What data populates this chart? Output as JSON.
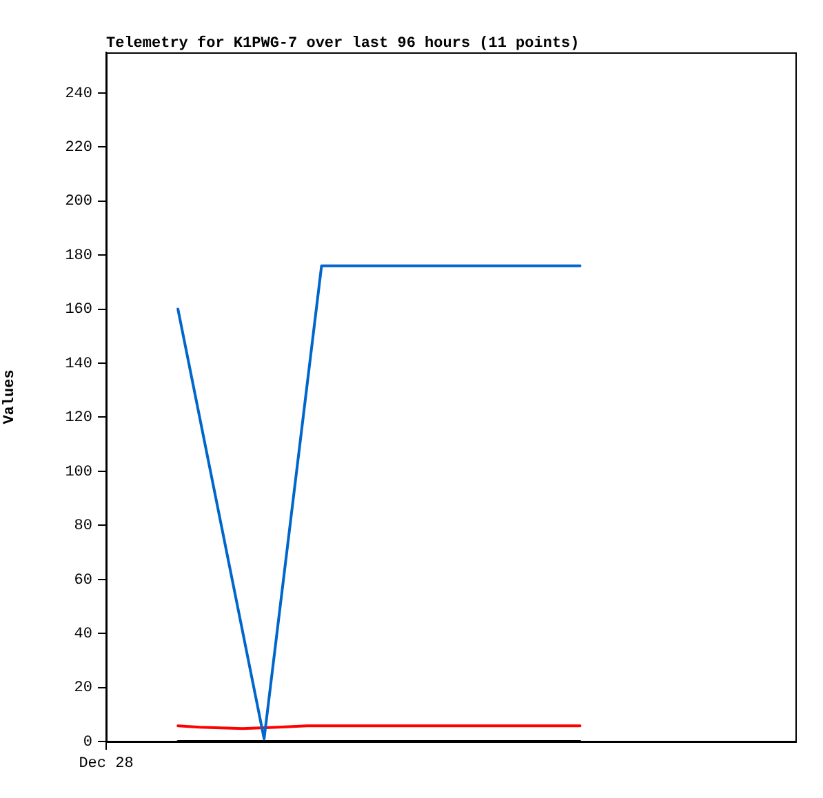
{
  "chart_data": {
    "type": "line",
    "title": "Telemetry for K1PWG-7 over last 96 hours (11 points)",
    "ylabel": "Values",
    "categories": [
      "Dec 28",
      null,
      null,
      null,
      null,
      null,
      null,
      null,
      null,
      null,
      null,
      null,
      null,
      null,
      null,
      null,
      null,
      null,
      null,
      null,
      null,
      null,
      null,
      null,
      null,
      null,
      null,
      null,
      null,
      null,
      null,
      null,
      null,
      null,
      null,
      null,
      null,
      null,
      null,
      null,
      null,
      null,
      null,
      null,
      null,
      null,
      null,
      null,
      null,
      null,
      null,
      null,
      null,
      null,
      null,
      null,
      null,
      null,
      null,
      null,
      null,
      null,
      null,
      null,
      null,
      null,
      null,
      null,
      null,
      null,
      null,
      null,
      null,
      null,
      null,
      null,
      null,
      null,
      null,
      null,
      null,
      null,
      null,
      null,
      null,
      null,
      null,
      null,
      null,
      null,
      null,
      null,
      null,
      null,
      null,
      null,
      null
    ],
    "ylim": [
      0,
      255
    ],
    "yticks": [
      0,
      20,
      40,
      60,
      80,
      100,
      120,
      140,
      160,
      180,
      200,
      220,
      240
    ],
    "grid": false,
    "legend": false,
    "marker": "none",
    "line_style": "solid",
    "series": [
      {
        "color": "#0066cc",
        "values": [
          null,
          null,
          null,
          null,
          null,
          null,
          null,
          null,
          null,
          null,
          160,
          null,
          null,
          null,
          null,
          null,
          null,
          null,
          null,
          null,
          null,
          null,
          1,
          null,
          null,
          null,
          null,
          null,
          null,
          null,
          176,
          null,
          null,
          null,
          null,
          null,
          null,
          null,
          null,
          null,
          null,
          null,
          null,
          null,
          null,
          null,
          null,
          null,
          null,
          null,
          null,
          null,
          null,
          null,
          null,
          null,
          null,
          null,
          null,
          null,
          null,
          null,
          null,
          null,
          null,
          null,
          176,
          null,
          null,
          null,
          null,
          null,
          null,
          null,
          null,
          null,
          null,
          null,
          null,
          null,
          null,
          null,
          null,
          null,
          null,
          null,
          null,
          null,
          null,
          null,
          null,
          null,
          null,
          null,
          null,
          null,
          null
        ]
      },
      {
        "color": "#ff0000",
        "values": [
          null,
          null,
          null,
          null,
          null,
          null,
          null,
          null,
          null,
          null,
          5.8,
          null,
          null,
          5.3,
          null,
          null,
          null,
          null,
          null,
          4.8,
          null,
          null,
          null,
          null,
          5.3,
          null,
          null,
          null,
          5.8,
          null,
          null,
          null,
          null,
          null,
          null,
          null,
          null,
          null,
          null,
          null,
          null,
          null,
          null,
          null,
          null,
          null,
          null,
          null,
          null,
          null,
          null,
          null,
          null,
          null,
          null,
          null,
          null,
          null,
          null,
          null,
          null,
          null,
          null,
          null,
          null,
          null,
          5.8,
          null,
          null,
          null,
          null,
          null,
          null,
          null,
          null,
          null,
          null,
          null,
          null,
          null,
          null,
          null,
          null,
          null,
          null,
          null,
          null,
          null,
          null,
          null,
          null,
          null,
          null,
          null,
          null,
          null,
          null
        ]
      },
      {
        "color": "#000000",
        "values": [
          null,
          null,
          null,
          null,
          null,
          null,
          null,
          null,
          null,
          null,
          0,
          null,
          null,
          null,
          null,
          null,
          null,
          null,
          null,
          null,
          null,
          null,
          null,
          null,
          null,
          null,
          null,
          null,
          null,
          null,
          null,
          null,
          null,
          null,
          null,
          null,
          null,
          null,
          null,
          null,
          null,
          null,
          null,
          null,
          null,
          null,
          null,
          null,
          null,
          null,
          null,
          null,
          null,
          null,
          null,
          null,
          null,
          null,
          null,
          null,
          null,
          null,
          null,
          null,
          null,
          null,
          0,
          null,
          null,
          null,
          null,
          null,
          null,
          null,
          null,
          null,
          null,
          null,
          null,
          null,
          null,
          null,
          null,
          null,
          null,
          null,
          null,
          null,
          null,
          null,
          null,
          null,
          null,
          null,
          null,
          null,
          null
        ]
      }
    ]
  }
}
